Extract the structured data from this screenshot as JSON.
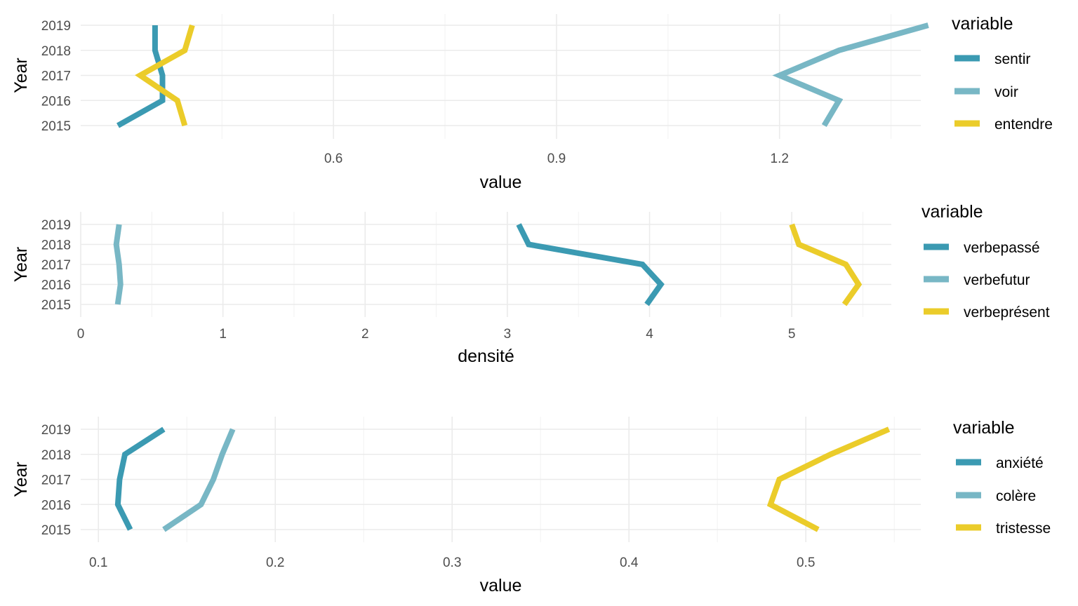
{
  "chart_data": [
    {
      "type": "line",
      "xlabel": "value",
      "ylabel": "Year",
      "xlim": [
        0.26,
        1.39
      ],
      "x_ticks": [
        0.6,
        0.9,
        1.2
      ],
      "x_tick_labels": [
        "0.6",
        "0.9",
        "1.2"
      ],
      "x_minor": [
        0.45,
        0.75,
        1.05,
        1.35
      ],
      "years": [
        "2015",
        "2016",
        "2017",
        "2018",
        "2019"
      ],
      "legend": {
        "title": "variable",
        "position": "right"
      },
      "series": [
        {
          "name": "sentir",
          "color": "#3b9ab2",
          "values": [
            0.31,
            0.37,
            0.37,
            0.36,
            0.36
          ]
        },
        {
          "name": "voir",
          "color": "#78b7c5",
          "values": [
            1.26,
            1.28,
            1.2,
            1.28,
            1.4
          ]
        },
        {
          "name": "entendre",
          "color": "#ebcc2a",
          "values": [
            0.4,
            0.39,
            0.34,
            0.4,
            0.41
          ]
        }
      ]
    },
    {
      "type": "line",
      "xlabel": "densité",
      "ylabel": "Year",
      "xlim": [
        0,
        5.7
      ],
      "x_ticks": [
        0,
        1,
        2,
        3,
        4,
        5
      ],
      "x_tick_labels": [
        "0",
        "1",
        "2",
        "3",
        "4",
        "5"
      ],
      "x_minor": [
        0.5,
        1.5,
        2.5,
        3.5,
        4.5,
        5.5
      ],
      "years": [
        "2015",
        "2016",
        "2017",
        "2018",
        "2019"
      ],
      "legend": {
        "title": "variable",
        "position": "right"
      },
      "series": [
        {
          "name": "verbepassé",
          "color": "#3b9ab2",
          "values": [
            3.98,
            4.08,
            3.95,
            3.15,
            3.08
          ]
        },
        {
          "name": "verbefutur",
          "color": "#78b7c5",
          "values": [
            0.26,
            0.28,
            0.27,
            0.25,
            0.27
          ]
        },
        {
          "name": "verbeprésent",
          "color": "#ebcc2a",
          "values": [
            5.37,
            5.47,
            5.38,
            5.05,
            5.0
          ]
        }
      ]
    },
    {
      "type": "line",
      "xlabel": "value",
      "ylabel": "Year",
      "xlim": [
        0.09,
        0.565
      ],
      "x_ticks": [
        0.1,
        0.2,
        0.3,
        0.4,
        0.5
      ],
      "x_tick_labels": [
        "0.1",
        "0.2",
        "0.3",
        "0.4",
        "0.5"
      ],
      "x_minor": [
        0.15,
        0.25,
        0.35,
        0.45,
        0.55
      ],
      "years": [
        "2015",
        "2016",
        "2017",
        "2018",
        "2019"
      ],
      "legend": {
        "title": "variable",
        "position": "right"
      },
      "series": [
        {
          "name": "anxiété",
          "color": "#3b9ab2",
          "values": [
            0.118,
            0.111,
            0.112,
            0.115,
            0.137
          ]
        },
        {
          "name": "colère",
          "color": "#78b7c5",
          "values": [
            0.137,
            0.158,
            0.165,
            0.17,
            0.176
          ]
        },
        {
          "name": "tristesse",
          "color": "#ebcc2a",
          "values": [
            0.507,
            0.48,
            0.485,
            0.514,
            0.547
          ]
        }
      ]
    }
  ]
}
